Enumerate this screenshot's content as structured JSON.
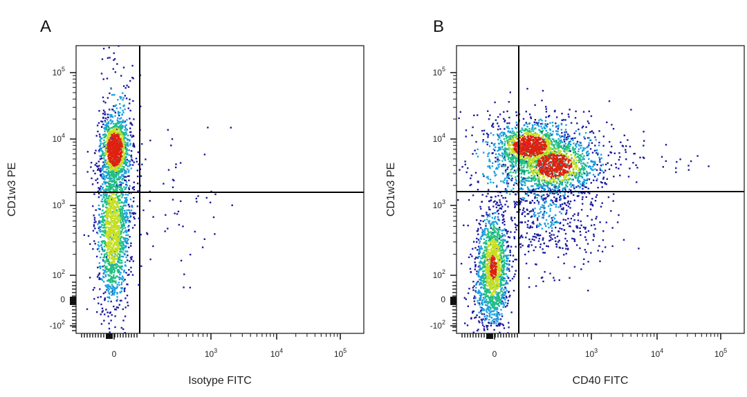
{
  "chart_data": [
    {
      "type": "scatter",
      "panel_label": "A",
      "xlabel": "Isotype FITC",
      "ylabel": "CD1w3 PE",
      "x_scale": "biexponential",
      "y_scale": "biexponential",
      "x_ticks": [
        {
          "base": "0",
          "exp": ""
        },
        {
          "base": "10",
          "exp": "3"
        },
        {
          "base": "10",
          "exp": "4"
        },
        {
          "base": "10",
          "exp": "5"
        }
      ],
      "y_ticks": [
        {
          "base": "10",
          "exp": "5"
        },
        {
          "base": "10",
          "exp": "4"
        },
        {
          "base": "10",
          "exp": "3"
        },
        {
          "base": "10",
          "exp": "2"
        },
        {
          "base": "0",
          "exp": ""
        },
        {
          "base": "-10",
          "exp": "2"
        }
      ],
      "quadrant_gate": {
        "x": 300,
        "y": 1500
      },
      "populations": [
        {
          "x_center": 0,
          "y_center": 6000,
          "density": "high"
        },
        {
          "x_center": 0,
          "y_center": 200,
          "density": "medium"
        }
      ],
      "grid": false,
      "legend": "none"
    },
    {
      "type": "scatter",
      "panel_label": "B",
      "xlabel": "CD40 FITC",
      "ylabel": "CD1w3 PE",
      "x_scale": "biexponential",
      "y_scale": "biexponential",
      "x_ticks": [
        {
          "base": "0",
          "exp": ""
        },
        {
          "base": "10",
          "exp": "3"
        },
        {
          "base": "10",
          "exp": "4"
        },
        {
          "base": "10",
          "exp": "5"
        }
      ],
      "y_ticks": [
        {
          "base": "10",
          "exp": "5"
        },
        {
          "base": "10",
          "exp": "4"
        },
        {
          "base": "10",
          "exp": "3"
        },
        {
          "base": "10",
          "exp": "2"
        },
        {
          "base": "0",
          "exp": ""
        },
        {
          "base": "-10",
          "exp": "2"
        }
      ],
      "quadrant_gate": {
        "x": 300,
        "y": 1500
      },
      "populations": [
        {
          "x_center": 250,
          "y_center": 8000,
          "density": "high"
        },
        {
          "x_center": 500,
          "y_center": 3500,
          "density": "high"
        },
        {
          "x_center": 0,
          "y_center": 150,
          "density": "medium"
        }
      ],
      "grid": false,
      "legend": "none"
    }
  ],
  "colors": {
    "density_low": "#1a1aa0",
    "density_midlow": "#1aa0e0",
    "density_mid": "#20c080",
    "density_midhigh": "#c8e020",
    "density_high": "#e02010",
    "axis": "#111111",
    "gate_line": "#000000"
  }
}
